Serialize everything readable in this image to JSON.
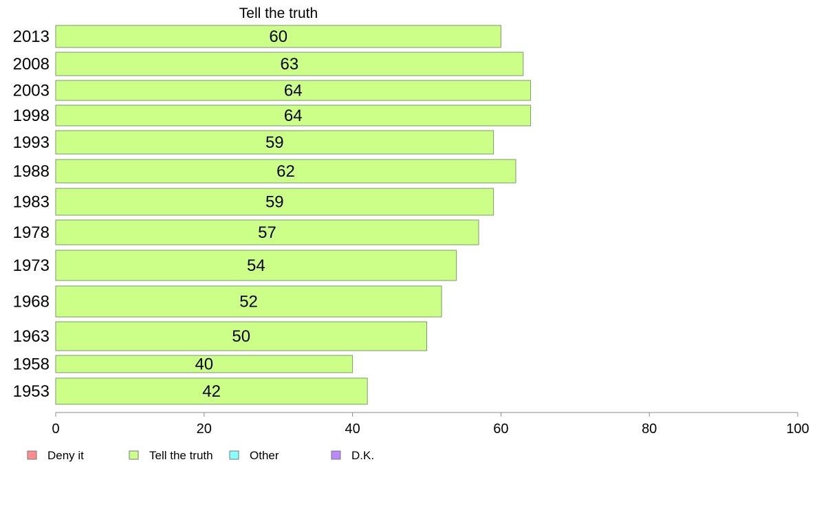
{
  "chart_data": {
    "type": "bar",
    "orientation": "horizontal",
    "title": "Tell the truth",
    "categories": [
      "2013",
      "2008",
      "2003",
      "1998",
      "1993",
      "1988",
      "1983",
      "1978",
      "1973",
      "1968",
      "1963",
      "1958",
      "1953"
    ],
    "series": [
      {
        "name": "Tell the truth",
        "color": "#ccff88",
        "values": [
          60,
          63,
          64,
          64,
          59,
          62,
          59,
          57,
          54,
          52,
          50,
          40,
          42
        ],
        "labels": [
          "60",
          "63",
          "64",
          "64",
          "59",
          "62",
          "59",
          "57",
          "54",
          "52",
          "50",
          "40",
          "42"
        ]
      }
    ],
    "xlim": [
      0,
      100
    ],
    "xticks": [
      "0",
      "20",
      "40",
      "60",
      "80",
      "100"
    ],
    "grid": false,
    "legend": {
      "position": "bottom-left",
      "entries": [
        {
          "label": "Deny it",
          "color": "#ff8c8c"
        },
        {
          "label": "Tell the truth",
          "color": "#ccff88"
        },
        {
          "label": "Other",
          "color": "#88ffff"
        },
        {
          "label": "D.K.",
          "color": "#bb88ff"
        }
      ]
    }
  }
}
